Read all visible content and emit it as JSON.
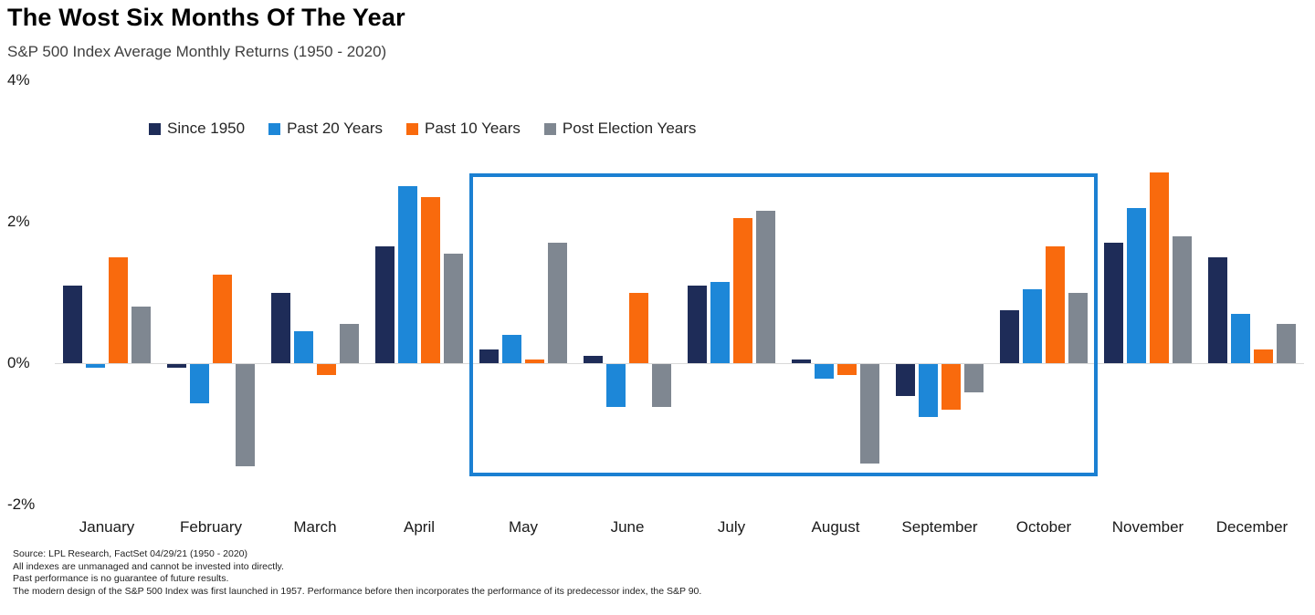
{
  "header": {
    "title": "The Wost Six Months Of The Year",
    "subtitle": "S&P 500 Index Average Monthly Returns (1950 - 2020)"
  },
  "chart_data": {
    "type": "bar",
    "title": "The Wost Six Months Of The Year",
    "subtitle": "S&P 500 Index Average Monthly Returns (1950 - 2020)",
    "categories": [
      "January",
      "February",
      "March",
      "April",
      "May",
      "June",
      "July",
      "August",
      "September",
      "October",
      "November",
      "December"
    ],
    "series": [
      {
        "name": "Since 1950",
        "color": "#1e2c58",
        "values": [
          1.1,
          -0.05,
          1.0,
          1.65,
          0.2,
          0.1,
          1.1,
          0.05,
          -0.45,
          0.75,
          1.7,
          1.5
        ]
      },
      {
        "name": "Past 20 Years",
        "color": "#1d87d8",
        "values": [
          -0.05,
          -0.55,
          0.45,
          2.5,
          0.4,
          -0.6,
          1.15,
          -0.2,
          -0.75,
          1.05,
          2.2,
          0.7
        ]
      },
      {
        "name": "Past 10 Years",
        "color": "#f96a0d",
        "values": [
          1.5,
          1.25,
          -0.15,
          2.35,
          0.05,
          1.0,
          2.05,
          -0.15,
          -0.65,
          1.65,
          2.7,
          0.2
        ]
      },
      {
        "name": "Post Election Years",
        "color": "#7f8791",
        "values": [
          0.8,
          -1.45,
          0.55,
          1.55,
          1.7,
          -0.6,
          2.15,
          -1.4,
          -0.4,
          1.0,
          1.8,
          0.55
        ]
      }
    ],
    "y_ticks": [
      "4%",
      "2%",
      "0%",
      "-2%"
    ],
    "y_tick_values": [
      4,
      2,
      0,
      -2
    ],
    "ylim": [
      -2.2,
      4
    ],
    "grid": "off",
    "legend_position": "top",
    "highlight": {
      "from": "May",
      "to": "October",
      "color": "#1b80d2"
    }
  },
  "footnotes": [
    "Source: LPL Research, FactSet 04/29/21  (1950 - 2020)",
    "All indexes are unmanaged and cannot be invested into directly.",
    "Past performance is no guarantee of future results.",
    "The modern design of the S&P 500 Index was first launched in 1957. Performance before then incorporates the performance of its  predecessor index, the S&P 90."
  ]
}
